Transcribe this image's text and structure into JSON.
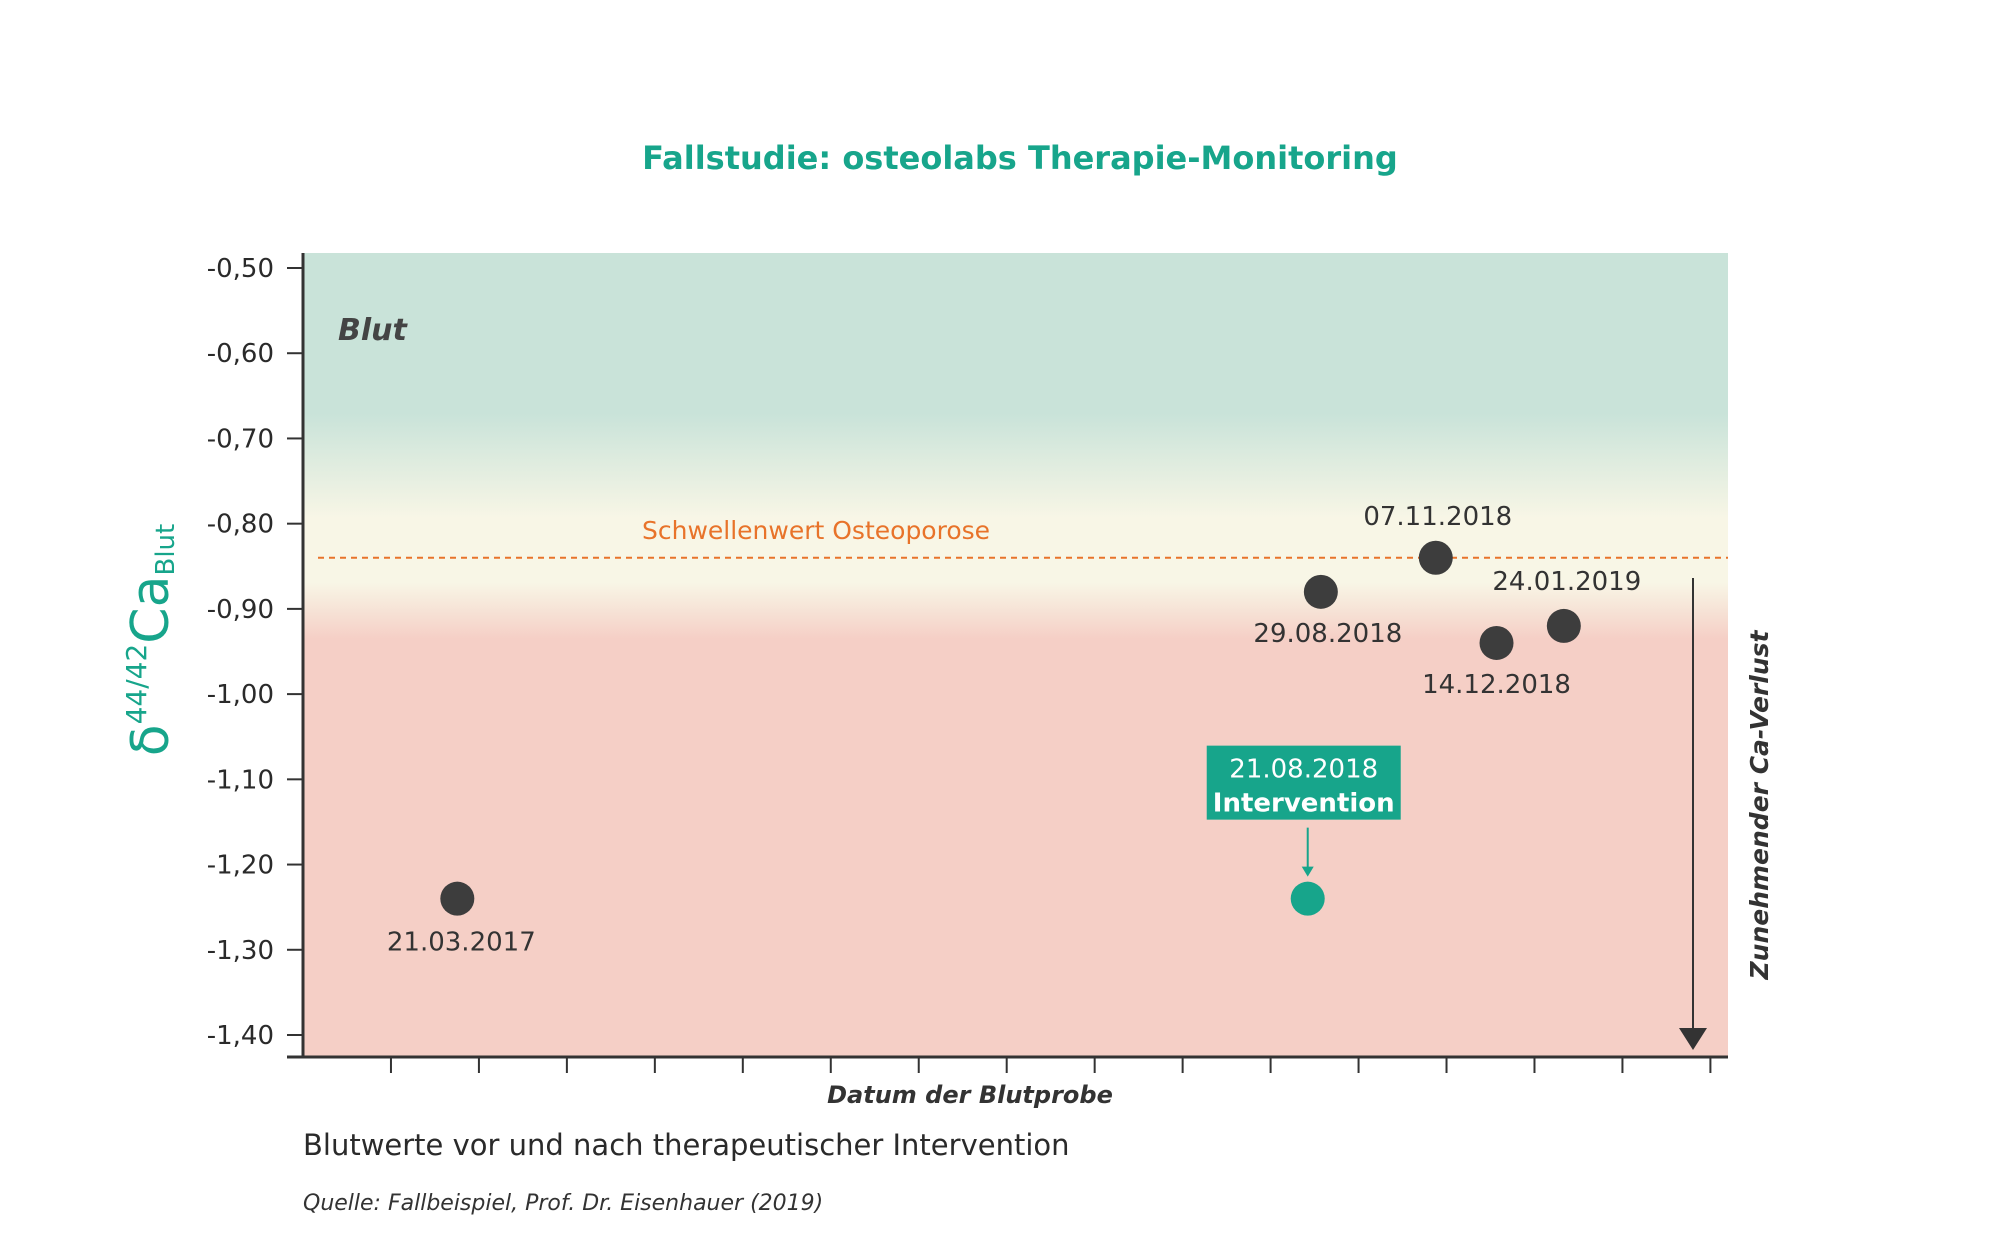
{
  "chart_data": {
    "type": "scatter",
    "title": "Fallstudie: osteolabs Therapie-Monitoring",
    "ylabel_main": "δ",
    "ylabel_sup": "44/42",
    "ylabel_element": "Ca",
    "ylabel_sub": "Blut",
    "xlabel": "Datum der Blutprobe",
    "ylim": [
      -1.4,
      -0.5
    ],
    "y_ticks": [
      -0.5,
      -0.6,
      -0.7,
      -0.8,
      -0.9,
      -1.0,
      -1.1,
      -1.2,
      -1.3,
      -1.4
    ],
    "y_tick_labels": [
      "-0,50",
      "-0,60",
      "-0,70",
      "-0,80",
      "-0,90",
      "-1,00",
      "-1,10",
      "-1,20",
      "-1,30",
      "-1,40"
    ],
    "xlim": [
      "2016-12-17",
      "2019-05-04"
    ],
    "x_minor_tick_count": 16,
    "zone_label": "Blut",
    "threshold": {
      "value": -0.84,
      "label": "Schwellenwert Osteoporose",
      "color": "#e8732a"
    },
    "points": [
      {
        "date": "2017-03-21",
        "label": "21.03.2017",
        "y": -1.24,
        "kind": "normal"
      },
      {
        "date": "2018-08-21",
        "label": "21.08.2018",
        "label2": "Intervention",
        "y": -1.24,
        "kind": "intervention"
      },
      {
        "date": "2018-08-29",
        "label": "29.08.2018",
        "y": -0.88,
        "kind": "normal"
      },
      {
        "date": "2018-11-07",
        "label": "07.11.2018",
        "y": -0.84,
        "kind": "normal"
      },
      {
        "date": "2018-12-14",
        "label": "14.12.2018",
        "y": -0.94,
        "kind": "normal"
      },
      {
        "date": "2019-01-24",
        "label": "24.01.2019",
        "y": -0.92,
        "kind": "normal"
      }
    ],
    "side_annotation": "Zunehmender Ca-Verlust",
    "colors": {
      "accent": "#17a58b",
      "point": "#3d3d3d",
      "zone_green": "#c9e3d9",
      "zone_yellow": "#f8f6e6",
      "zone_red": "#f5cfc6",
      "axis": "#333333"
    }
  },
  "caption": "Blutwerte vor und nach therapeutischer Intervention",
  "source": "Quelle: Fallbeispiel, Prof. Dr. Eisenhauer (2019)"
}
